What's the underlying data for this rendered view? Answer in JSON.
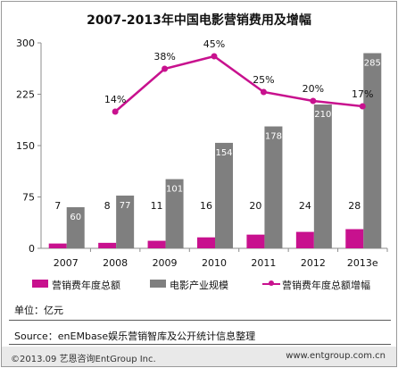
{
  "title": "2007-2013年中国电影营销费用及增幅",
  "chart_data": {
    "type": "bar",
    "categories": [
      "2007",
      "2008",
      "2009",
      "2010",
      "2011",
      "2012",
      "2013e"
    ],
    "ylim": [
      0,
      300
    ],
    "yticks": [
      "0",
      "75",
      "150",
      "225",
      "300"
    ],
    "series": [
      {
        "name": "营销费年度总额",
        "type": "bar",
        "color": "#c8118e",
        "values": [
          7,
          8,
          11,
          16,
          20,
          24,
          28
        ]
      },
      {
        "name": "电影产业规模",
        "type": "bar",
        "color": "#7f7f7f",
        "values": [
          60,
          77,
          101,
          154,
          178,
          210,
          285
        ]
      },
      {
        "name": "营销费年度总额增幅",
        "type": "line",
        "color": "#c8118e",
        "values": [
          null,
          14,
          38,
          45,
          25,
          20,
          17
        ],
        "labels": [
          "",
          "14%",
          "38%",
          "45%",
          "25%",
          "20%",
          "17%"
        ]
      }
    ],
    "grid": false,
    "legend_position": "bottom"
  },
  "unit_text": "单位：亿元",
  "source_text": "Source：enEMbase娱乐营销智库及公开统计信息整理",
  "footer": {
    "left": "©2013.09  艺恩咨询EntGroup Inc.",
    "right": "www.entgroup.com.cn"
  }
}
